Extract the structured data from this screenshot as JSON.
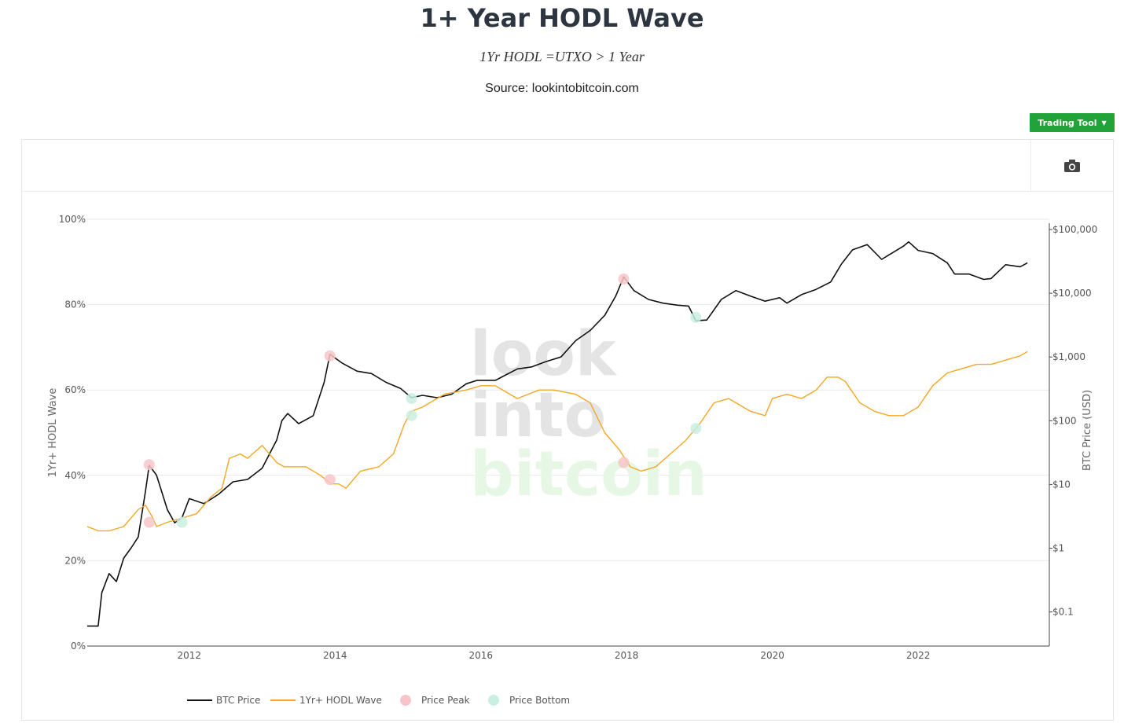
{
  "header": {
    "title": "1+ Year HODL Wave",
    "subtitle": "1Yr HODL =UTXO > 1 Year",
    "source": "Source: lookintobitcoin.com"
  },
  "toolbar": {
    "trading_tool_label": "Trading Tool",
    "camera_icon": "camera-icon"
  },
  "watermark": {
    "line1": "look",
    "line2": "into",
    "line3": "bitcoin"
  },
  "colors": {
    "btc": "#111111",
    "hodl": "#f5a623",
    "peak": "#f7c5c9",
    "bottom": "#c9efe0",
    "accent": "#21a339"
  },
  "chart_data": {
    "type": "line",
    "title": "",
    "xlabel": "",
    "ylabel_left": "1Yr+ HODL Wave",
    "ylabel_right": "BTC Price (USD)",
    "x_range": [
      2010.6,
      2023.8
    ],
    "x_ticks": [
      2012,
      2014,
      2016,
      2018,
      2020,
      2022
    ],
    "y_left_range": [
      0,
      100
    ],
    "y_left_ticks": [
      {
        "v": 0,
        "label": "0%"
      },
      {
        "v": 20,
        "label": "20%"
      },
      {
        "v": 40,
        "label": "40%"
      },
      {
        "v": 60,
        "label": "60%"
      },
      {
        "v": 80,
        "label": "80%"
      },
      {
        "v": 100,
        "label": "100%"
      }
    ],
    "y_right_scale": "log",
    "y_right_range": [
      0.05,
      100000
    ],
    "y_right_ticks": [
      {
        "v": 0.1,
        "label": "$0.1"
      },
      {
        "v": 1,
        "label": "$1"
      },
      {
        "v": 10,
        "label": "$10"
      },
      {
        "v": 100,
        "label": "$100"
      },
      {
        "v": 1000,
        "label": "$1,000"
      },
      {
        "v": 10000,
        "label": "$10,000"
      },
      {
        "v": 100000,
        "label": "$100,000"
      }
    ],
    "grid": true,
    "legend_position": "bottom",
    "series": [
      {
        "name": "BTC Price",
        "axis": "right",
        "x": [
          2010.6,
          2010.75,
          2010.8,
          2010.9,
          2011.0,
          2011.1,
          2011.2,
          2011.3,
          2011.4,
          2011.45,
          2011.55,
          2011.7,
          2011.8,
          2011.9,
          2012.0,
          2012.2,
          2012.4,
          2012.6,
          2012.8,
          2013.0,
          2013.2,
          2013.27,
          2013.35,
          2013.5,
          2013.7,
          2013.85,
          2013.93,
          2014.1,
          2014.3,
          2014.5,
          2014.7,
          2014.9,
          2015.05,
          2015.2,
          2015.4,
          2015.6,
          2015.8,
          2015.95,
          2016.2,
          2016.5,
          2016.7,
          2016.9,
          2017.1,
          2017.3,
          2017.5,
          2017.7,
          2017.85,
          2017.96,
          2018.1,
          2018.3,
          2018.5,
          2018.7,
          2018.85,
          2018.95,
          2019.1,
          2019.3,
          2019.5,
          2019.7,
          2019.9,
          2020.1,
          2020.2,
          2020.4,
          2020.6,
          2020.8,
          2020.95,
          2021.1,
          2021.3,
          2021.5,
          2021.6,
          2021.8,
          2021.87,
          2022.0,
          2022.2,
          2022.4,
          2022.5,
          2022.7,
          2022.9,
          2023.0,
          2023.2,
          2023.4,
          2023.5
        ],
        "values": [
          0.06,
          0.06,
          0.2,
          0.4,
          0.3,
          0.7,
          1.0,
          1.5,
          8,
          20,
          14,
          4,
          2.5,
          3,
          6,
          5,
          7,
          11,
          12,
          18,
          50,
          100,
          130,
          90,
          120,
          400,
          1100,
          800,
          600,
          550,
          400,
          320,
          230,
          250,
          230,
          260,
          380,
          430,
          430,
          650,
          700,
          850,
          1000,
          1800,
          2600,
          4500,
          9000,
          18000,
          11000,
          8000,
          7000,
          6500,
          6300,
          3700,
          3800,
          8000,
          11000,
          9000,
          7500,
          8500,
          7000,
          9500,
          11500,
          15000,
          29000,
          48000,
          58000,
          34000,
          40000,
          55000,
          64000,
          47000,
          42000,
          30000,
          20000,
          20000,
          16500,
          17000,
          28000,
          26000,
          30000
        ]
      },
      {
        "name": "1Yr+ HODL Wave",
        "axis": "left",
        "x": [
          2010.6,
          2010.75,
          2010.9,
          2011.1,
          2011.3,
          2011.4,
          2011.5,
          2011.55,
          2011.7,
          2011.9,
          2012.1,
          2012.3,
          2012.45,
          2012.55,
          2012.7,
          2012.8,
          2013.0,
          2013.1,
          2013.2,
          2013.3,
          2013.4,
          2013.6,
          2013.8,
          2013.95,
          2014.05,
          2014.15,
          2014.25,
          2014.35,
          2014.6,
          2014.8,
          2014.95,
          2015.05,
          2015.2,
          2015.5,
          2015.8,
          2016.0,
          2016.2,
          2016.5,
          2016.8,
          2017.0,
          2017.3,
          2017.5,
          2017.7,
          2017.9,
          2018.05,
          2018.2,
          2018.4,
          2018.6,
          2018.8,
          2019.0,
          2019.2,
          2019.4,
          2019.6,
          2019.7,
          2019.9,
          2020.0,
          2020.2,
          2020.4,
          2020.6,
          2020.75,
          2020.9,
          2021.0,
          2021.2,
          2021.4,
          2021.6,
          2021.8,
          2021.9,
          2022.0,
          2022.2,
          2022.4,
          2022.6,
          2022.8,
          2023.0,
          2023.2,
          2023.4,
          2023.5
        ],
        "values": [
          28,
          27,
          27,
          28,
          32,
          33,
          30,
          28,
          29,
          30,
          31,
          35,
          37,
          44,
          45,
          44,
          47,
          45,
          43,
          42,
          42,
          42,
          40,
          38,
          38,
          37,
          39,
          41,
          42,
          45,
          52,
          55,
          56,
          59,
          60,
          61,
          61,
          58,
          60,
          60,
          59,
          57,
          50,
          46,
          42,
          41,
          42,
          45,
          48,
          52,
          57,
          58,
          56,
          55,
          54,
          58,
          59,
          58,
          60,
          63,
          63,
          62,
          57,
          55,
          54,
          54,
          55,
          56,
          61,
          64,
          65,
          66,
          66,
          67,
          68,
          69
        ]
      },
      {
        "name": "Price Peak",
        "type": "scatter",
        "axis": "left",
        "x": [
          2011.45,
          2011.45,
          2013.93,
          2013.93,
          2017.96,
          2017.96
        ],
        "values": [
          42.5,
          29,
          68,
          39,
          86,
          43
        ]
      },
      {
        "name": "Price Bottom",
        "type": "scatter",
        "axis": "left",
        "x": [
          2011.9,
          2015.05,
          2015.05,
          2018.95,
          2018.95
        ],
        "values": [
          29,
          58,
          54,
          77,
          51
        ]
      }
    ]
  }
}
